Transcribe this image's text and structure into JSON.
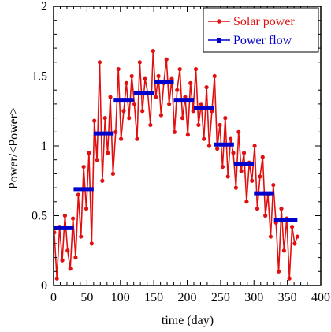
{
  "chart_data": {
    "type": "line",
    "xlabel": "time (day)",
    "ylabel": "Power/<Power>",
    "xlim": [
      0,
      400
    ],
    "ylim": [
      0,
      2
    ],
    "x_ticks": [
      "0",
      "50",
      "100",
      "150",
      "200",
      "250",
      "300",
      "350",
      "400"
    ],
    "y_ticks": [
      "0",
      "0.5",
      "1",
      "1.5",
      "2"
    ],
    "grid": false,
    "legend_position": "top-right",
    "series": [
      {
        "name": "Solar power",
        "color": "#e01010",
        "marker": "circle",
        "style": "line-with-markers",
        "x": [
          1,
          5,
          9,
          13,
          17,
          21,
          25,
          29,
          33,
          37,
          41,
          45,
          49,
          53,
          57,
          61,
          65,
          69,
          73,
          77,
          81,
          85,
          89,
          93,
          97,
          101,
          105,
          109,
          113,
          117,
          121,
          125,
          129,
          133,
          137,
          141,
          145,
          149,
          153,
          157,
          161,
          165,
          169,
          173,
          177,
          181,
          185,
          189,
          193,
          197,
          201,
          205,
          209,
          213,
          217,
          221,
          225,
          229,
          233,
          237,
          241,
          245,
          249,
          253,
          257,
          261,
          265,
          269,
          273,
          277,
          281,
          285,
          289,
          293,
          297,
          301,
          305,
          309,
          313,
          317,
          321,
          325,
          329,
          333,
          337,
          341,
          345,
          349,
          353,
          357,
          361,
          365
        ],
        "y": [
          0.38,
          0.05,
          0.42,
          0.18,
          0.5,
          0.25,
          0.12,
          0.48,
          0.2,
          0.65,
          0.35,
          0.85,
          0.55,
          0.95,
          0.3,
          1.18,
          0.9,
          1.6,
          0.75,
          1.2,
          0.95,
          1.35,
          0.8,
          1.1,
          1.55,
          1.05,
          1.25,
          1.45,
          1.2,
          1.5,
          1.3,
          1.05,
          1.6,
          1.25,
          1.48,
          1.38,
          1.15,
          1.68,
          1.35,
          1.5,
          1.22,
          1.45,
          1.62,
          1.3,
          1.48,
          1.1,
          1.4,
          1.55,
          1.2,
          1.35,
          1.08,
          1.45,
          1.25,
          1.55,
          1.15,
          1.3,
          1.05,
          1.42,
          1.0,
          1.25,
          1.5,
          0.98,
          1.15,
          0.85,
          1.2,
          0.78,
          1.05,
          0.95,
          0.7,
          1.1,
          0.82,
          0.95,
          0.6,
          0.88,
          0.75,
          1.0,
          0.55,
          0.78,
          0.92,
          0.5,
          0.65,
          0.35,
          0.72,
          0.45,
          0.1,
          0.55,
          0.25,
          0.48,
          0.05,
          0.42,
          0.3,
          0.35
        ]
      },
      {
        "name": "Power flow",
        "color": "#0000cc",
        "marker": "square",
        "style": "step-segments",
        "segments": [
          {
            "x0": 0,
            "x1": 30,
            "y": 0.41
          },
          {
            "x0": 30,
            "x1": 60,
            "y": 0.69
          },
          {
            "x0": 60,
            "x1": 90,
            "y": 1.09
          },
          {
            "x0": 90,
            "x1": 120,
            "y": 1.33
          },
          {
            "x0": 120,
            "x1": 150,
            "y": 1.38
          },
          {
            "x0": 150,
            "x1": 180,
            "y": 1.46
          },
          {
            "x0": 180,
            "x1": 210,
            "y": 1.33
          },
          {
            "x0": 210,
            "x1": 240,
            "y": 1.27
          },
          {
            "x0": 240,
            "x1": 270,
            "y": 1.01
          },
          {
            "x0": 270,
            "x1": 300,
            "y": 0.87
          },
          {
            "x0": 300,
            "x1": 330,
            "y": 0.66
          },
          {
            "x0": 330,
            "x1": 365,
            "y": 0.47
          }
        ]
      }
    ]
  }
}
